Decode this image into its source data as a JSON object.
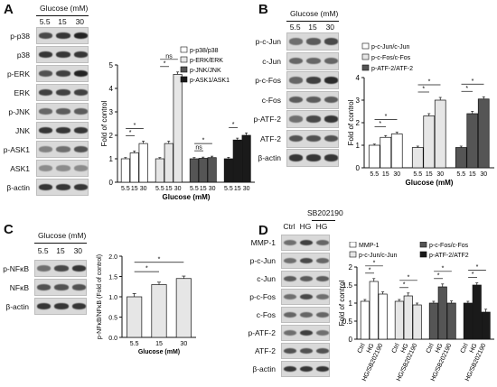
{
  "panels": {
    "A": {
      "letter": "A",
      "condition_title": "Glucose (mM)",
      "lanes": [
        "5.5",
        "15",
        "30"
      ],
      "rows": [
        {
          "label": "p-p38",
          "intensity": [
            0.75,
            0.85,
            0.95
          ]
        },
        {
          "label": "p38",
          "intensity": [
            0.85,
            0.85,
            0.85
          ]
        },
        {
          "label": "p-ERK",
          "intensity": [
            0.7,
            0.8,
            0.95
          ]
        },
        {
          "label": "ERK",
          "intensity": [
            0.8,
            0.8,
            0.8
          ]
        },
        {
          "label": "p-JNK",
          "intensity": [
            0.6,
            0.65,
            0.65
          ]
        },
        {
          "label": "JNK",
          "intensity": [
            0.85,
            0.85,
            0.85
          ]
        },
        {
          "label": "p-ASK1",
          "intensity": [
            0.45,
            0.55,
            0.7
          ]
        },
        {
          "label": "ASK1",
          "intensity": [
            0.4,
            0.4,
            0.4
          ]
        },
        {
          "label": "β-actin",
          "intensity": [
            0.85,
            0.85,
            0.85
          ]
        }
      ],
      "chart_data": {
        "type": "bar",
        "ylabel": "Fold of control",
        "xlabel": "Glucose (mM)",
        "ylim": [
          0,
          5
        ],
        "yticks": [
          0,
          1,
          2,
          3,
          4,
          5
        ],
        "group_tick_labels": [
          "5.5",
          "15",
          "30"
        ],
        "series": [
          {
            "name": "p-p38/p38",
            "values": [
              1.0,
              1.25,
              1.65
            ],
            "errors": [
              0.05,
              0.08,
              0.1
            ],
            "color": "#ffffff"
          },
          {
            "name": "p-ERK/ERK",
            "values": [
              1.0,
              1.65,
              4.6
            ],
            "errors": [
              0.05,
              0.1,
              0.1
            ],
            "color": "#e6e6e6"
          },
          {
            "name": "p-JNK/JNK",
            "values": [
              1.0,
              1.02,
              1.05
            ],
            "errors": [
              0.05,
              0.05,
              0.06
            ],
            "color": "#555555"
          },
          {
            "name": "p-ASK1/ASK1",
            "values": [
              1.0,
              1.8,
              2.0
            ],
            "errors": [
              0.06,
              0.08,
              0.1
            ],
            "color": "#1a1a1a"
          }
        ],
        "significance": [
          "*",
          "*",
          "*",
          "ns",
          "ns",
          "*",
          "*"
        ]
      }
    },
    "B": {
      "letter": "B",
      "condition_title": "Glucose (mM)",
      "lanes": [
        "5.5",
        "15",
        "30"
      ],
      "rows": [
        {
          "label": "p-c-Jun",
          "intensity": [
            0.55,
            0.65,
            0.75
          ]
        },
        {
          "label": "c-Jun",
          "intensity": [
            0.6,
            0.6,
            0.6
          ]
        },
        {
          "label": "p-c-Fos",
          "intensity": [
            0.6,
            0.8,
            0.9
          ]
        },
        {
          "label": "c-Fos",
          "intensity": [
            0.65,
            0.65,
            0.65
          ]
        },
        {
          "label": "p-ATF-2",
          "intensity": [
            0.55,
            0.75,
            0.85
          ]
        },
        {
          "label": "ATF-2",
          "intensity": [
            0.7,
            0.7,
            0.7
          ]
        },
        {
          "label": "β-actin",
          "intensity": [
            0.85,
            0.85,
            0.85
          ]
        }
      ],
      "chart_data": {
        "type": "bar",
        "ylabel": "Fold of control",
        "xlabel": "Glucose (mM)",
        "ylim": [
          0,
          4
        ],
        "yticks": [
          0,
          1,
          2,
          3,
          4
        ],
        "group_tick_labels": [
          "5.5",
          "15",
          "30"
        ],
        "series": [
          {
            "name": "p-c-Jun/c-Jun",
            "values": [
              1.0,
              1.35,
              1.5
            ],
            "errors": [
              0.05,
              0.08,
              0.08
            ],
            "color": "#ffffff"
          },
          {
            "name": "p-c-Fos/c-Fos",
            "values": [
              0.9,
              2.3,
              3.0
            ],
            "errors": [
              0.06,
              0.1,
              0.12
            ],
            "color": "#e6e6e6"
          },
          {
            "name": "p-ATF-2/ATF-2",
            "values": [
              0.9,
              2.4,
              3.05
            ],
            "errors": [
              0.06,
              0.1,
              0.1
            ],
            "color": "#555555"
          }
        ],
        "significance": [
          "*",
          "*",
          "*",
          "*",
          "*",
          "*"
        ]
      }
    },
    "C": {
      "letter": "C",
      "condition_title": "Glucose (mM)",
      "lanes": [
        "5.5",
        "15",
        "30"
      ],
      "rows": [
        {
          "label": "p-NFκB",
          "intensity": [
            0.55,
            0.75,
            0.85
          ]
        },
        {
          "label": "NFκB",
          "intensity": [
            0.7,
            0.7,
            0.7
          ]
        },
        {
          "label": "β-actin",
          "intensity": [
            0.85,
            0.85,
            0.85
          ]
        }
      ],
      "chart_data": {
        "type": "bar",
        "ylabel": "p-NFκB/NFκB (Fold of control)",
        "xlabel": "Glucose (mM)",
        "ylim": [
          0,
          2.0
        ],
        "yticks": [
          0.0,
          0.5,
          1.0,
          1.5,
          2.0
        ],
        "categories": [
          "5.5",
          "15",
          "30"
        ],
        "values": [
          1.0,
          1.3,
          1.45
        ],
        "errors": [
          0.08,
          0.06,
          0.06
        ],
        "color": "#e6e6e6",
        "significance": [
          "*",
          "*"
        ]
      }
    },
    "D": {
      "letter": "D",
      "inhibitor_label": "SB202190",
      "lanes": [
        "Ctrl",
        "HG",
        "HG"
      ],
      "rows": [
        {
          "label": "MMP-1",
          "intensity": [
            0.55,
            0.8,
            0.6
          ]
        },
        {
          "label": "p-c-Jun",
          "intensity": [
            0.55,
            0.75,
            0.6
          ]
        },
        {
          "label": "c-Jun",
          "intensity": [
            0.65,
            0.65,
            0.65
          ]
        },
        {
          "label": "p-c-Fos",
          "intensity": [
            0.55,
            0.75,
            0.55
          ]
        },
        {
          "label": "c-Fos",
          "intensity": [
            0.6,
            0.6,
            0.6
          ]
        },
        {
          "label": "p-ATF-2",
          "intensity": [
            0.55,
            0.8,
            0.55
          ]
        },
        {
          "label": "ATF-2",
          "intensity": [
            0.7,
            0.7,
            0.7
          ]
        },
        {
          "label": "β-actin",
          "intensity": [
            0.85,
            0.85,
            0.85
          ]
        }
      ],
      "chart_data": {
        "type": "bar",
        "ylabel": "Fold of control",
        "ylim": [
          0,
          2.0
        ],
        "yticks": [
          0.0,
          0.5,
          1.0,
          1.5,
          2.0
        ],
        "group_tick_labels": [
          "Ctrl",
          "HG",
          "HG/SB202190"
        ],
        "series": [
          {
            "name": "MMP-1",
            "values": [
              1.05,
              1.6,
              1.25
            ],
            "errors": [
              0.05,
              0.08,
              0.06
            ],
            "color": "#ffffff"
          },
          {
            "name": "p-c-Jun/c-Jun",
            "values": [
              1.05,
              1.2,
              0.95
            ],
            "errors": [
              0.05,
              0.08,
              0.05
            ],
            "color": "#e6e6e6"
          },
          {
            "name": "p-c-Fos/c-Fos",
            "values": [
              1.0,
              1.45,
              1.0
            ],
            "errors": [
              0.05,
              0.08,
              0.06
            ],
            "color": "#555555"
          },
          {
            "name": "p-ATF-2/ATF2",
            "values": [
              1.0,
              1.5,
              0.75
            ],
            "errors": [
              0.05,
              0.06,
              0.08
            ],
            "color": "#1a1a1a"
          }
        ],
        "significance": [
          "*",
          "*",
          "*",
          "*",
          "*",
          "*",
          "*",
          "*"
        ]
      }
    }
  }
}
